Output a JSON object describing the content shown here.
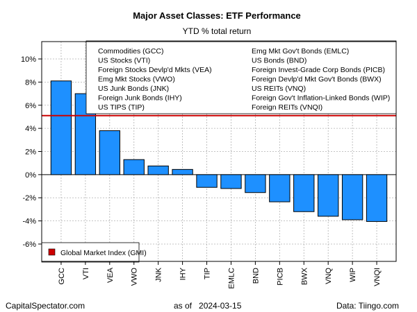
{
  "chart_data": {
    "type": "bar",
    "title": "Major Asset Classes: ETF Performance",
    "subtitle": "YTD % total return",
    "categories": [
      "GCC",
      "VTI",
      "VEA",
      "VWO",
      "JNK",
      "IHY",
      "TIP",
      "EMLC",
      "BND",
      "PICB",
      "BWX",
      "VNQ",
      "WIP",
      "VNQI"
    ],
    "values": [
      8.1,
      7.0,
      3.8,
      1.3,
      0.75,
      0.45,
      -1.1,
      -1.2,
      -1.55,
      -2.35,
      -3.2,
      -3.6,
      -3.9,
      -4.05
    ],
    "ylim": [
      -7.5,
      11.5
    ],
    "yticks": [
      -6,
      -4,
      -2,
      0,
      2,
      4,
      6,
      8,
      10
    ],
    "ytick_labels": [
      "-6%",
      "-4%",
      "-2%",
      "0%",
      "2%",
      "4%",
      "6%",
      "8%",
      "10%"
    ],
    "reference_line": {
      "value": 5.1,
      "label": "Global Market Index (GMI)",
      "color": "#cc0000"
    },
    "bar_color": "#1e90ff",
    "grid": true,
    "legend_placement": "top-right",
    "legend_items_left": [
      "Commodities (GCC)",
      "US Stocks (VTI)",
      "Foreign Stocks Devlp'd Mkts (VEA)",
      "Emg Mkt Stocks (VWO)",
      "US Junk Bonds (JNK)",
      "Foreign Junk Bonds (IHY)",
      "US TIPS (TIP)"
    ],
    "legend_items_right": [
      "Emg Mkt Gov't Bonds (EMLC)",
      "US Bonds (BND)",
      "Foreign Invest-Grade Corp Bonds (PICB)",
      "Foreign Devlp'd Mkt Gov't Bonds (BWX)",
      "US REITs (VNQ)",
      "Foreign Gov't Inflation-Linked Bonds (WIP)",
      "Foreign REITs (VNQI)"
    ]
  },
  "footer": {
    "left": "CapitalSpectator.com",
    "center": "as of   2024-03-15",
    "right": "Data: Tiingo.com"
  }
}
